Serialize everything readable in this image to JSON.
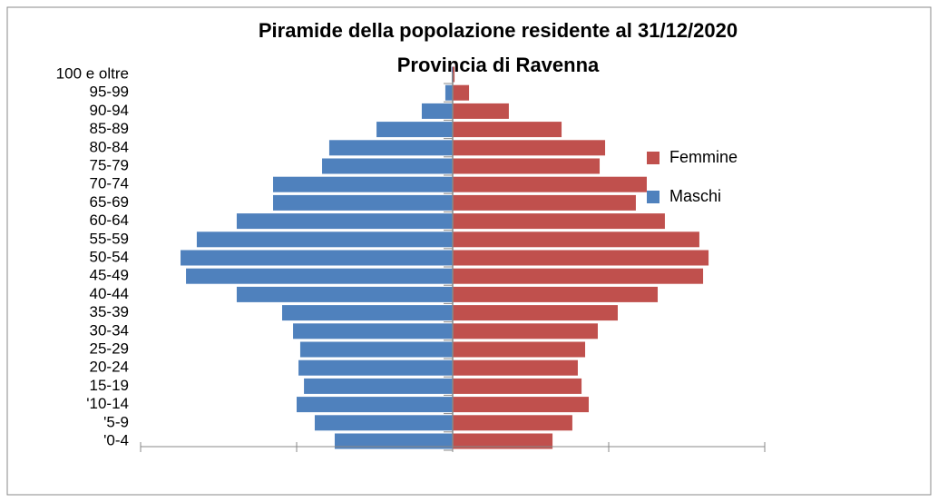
{
  "chart_data": {
    "type": "pyramid",
    "title": "Piramide della popolazione residente al 31/12/2020",
    "subtitle": "Provincia di Ravenna",
    "categories": [
      "'0-4",
      "'5-9",
      "'10-14",
      "15-19",
      "20-24",
      "25-29",
      "30-34",
      "35-39",
      "40-44",
      "45-49",
      "50-54",
      "55-59",
      "60-64",
      "65-69",
      "70-74",
      "75-79",
      "80-84",
      "85-89",
      "90-94",
      "95-99",
      "100 e oltre"
    ],
    "series": [
      {
        "name": "Femmine",
        "color": "#c0504d",
        "values": [
          6400,
          7670,
          8720,
          8260,
          8020,
          8490,
          9300,
          10580,
          13140,
          16050,
          16400,
          15810,
          13600,
          11740,
          12440,
          9420,
          9770,
          6980,
          3600,
          1050,
          120
        ]
      },
      {
        "name": "Maschi",
        "color": "#4f81bd",
        "values": [
          -7560,
          -8840,
          -10000,
          -9530,
          -9880,
          -9770,
          -10230,
          -10930,
          -13840,
          -17090,
          -17440,
          -16400,
          -13840,
          -11510,
          -11510,
          -8370,
          -7910,
          -4880,
          -1980,
          -470,
          -60
        ]
      }
    ],
    "xlim": [
      -20000,
      20000
    ],
    "xticks": [
      -20000,
      -10000,
      0,
      10000,
      20000
    ]
  }
}
